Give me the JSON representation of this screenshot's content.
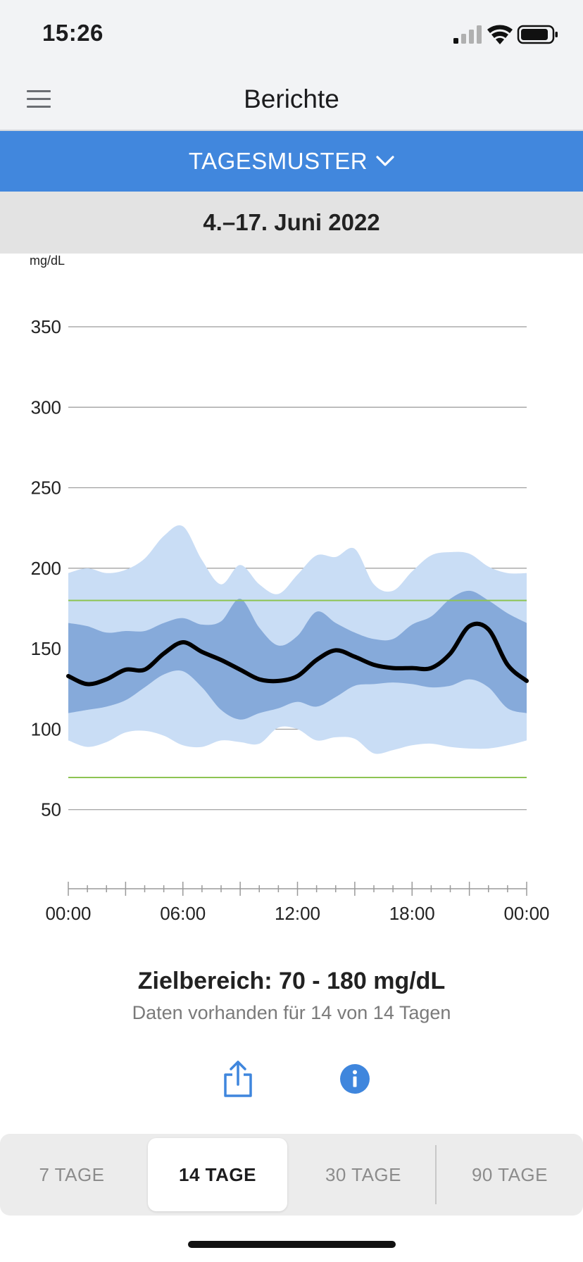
{
  "status": {
    "time": "15:26",
    "icons": [
      "signal-icon",
      "wifi-icon",
      "battery-icon"
    ]
  },
  "nav": {
    "title": "Berichte",
    "menu_icon": "hamburger-menu-icon"
  },
  "report": {
    "label": "TAGESMUSTER",
    "icon": "chevron-down-icon"
  },
  "period": {
    "label": "4.–17. Juni 2022"
  },
  "chart_data": {
    "type": "area",
    "unit": "mg/dL",
    "ylim": [
      0,
      350
    ],
    "yticks": [
      50,
      100,
      150,
      200,
      250,
      300,
      350
    ],
    "xlim": [
      0,
      24
    ],
    "xtick_labels": [
      "00:00",
      "06:00",
      "12:00",
      "18:00",
      "00:00"
    ],
    "target_range": [
      70,
      180
    ],
    "colors": {
      "outer_band": "#c9ddf5",
      "inner_band": "#86aada",
      "median": "#000000",
      "target_lines": "#8dc452",
      "grid": "#9a9a9a"
    },
    "hours": [
      0,
      1,
      2,
      3,
      4,
      5,
      6,
      7,
      8,
      9,
      10,
      11,
      12,
      13,
      14,
      15,
      16,
      17,
      18,
      19,
      20,
      21,
      22,
      23,
      24
    ],
    "series": [
      {
        "values": [
          197,
          200,
          197,
          199,
          206,
          220,
          226,
          205,
          190,
          202,
          190,
          184,
          196,
          208,
          207,
          212,
          190,
          186,
          198,
          208,
          210,
          209,
          201,
          197,
          197
        ]
      },
      {
        "values": [
          166,
          164,
          160,
          161,
          161,
          166,
          169,
          165,
          167,
          181,
          163,
          152,
          158,
          173,
          166,
          160,
          156,
          156,
          165,
          170,
          181,
          186,
          180,
          172,
          166
        ]
      },
      {
        "values": [
          133,
          128,
          131,
          137,
          137,
          147,
          154,
          148,
          143,
          137,
          131,
          130,
          133,
          143,
          149,
          145,
          140,
          138,
          138,
          138,
          147,
          164,
          162,
          140,
          130
        ]
      },
      {
        "values": [
          110,
          112,
          114,
          118,
          126,
          134,
          136,
          126,
          112,
          106,
          110,
          113,
          117,
          114,
          120,
          127,
          128,
          129,
          128,
          126,
          127,
          131,
          126,
          113,
          110
        ]
      },
      {
        "values": [
          93,
          89,
          92,
          98,
          99,
          96,
          90,
          89,
          93,
          92,
          91,
          101,
          100,
          93,
          95,
          94,
          85,
          87,
          90,
          91,
          89,
          88,
          88,
          90,
          93
        ]
      }
    ]
  },
  "summary": {
    "target": "Zielbereich: 70 - 180 mg/dL",
    "days": "Daten vorhanden für 14 von 14 Tagen"
  },
  "actions": {
    "share_icon": "share-icon",
    "info_icon": "info-icon"
  },
  "segments": [
    "7 TAGE",
    "14 TAGE",
    "30 TAGE",
    "90 TAGE"
  ],
  "active_segment": "14 TAGE"
}
